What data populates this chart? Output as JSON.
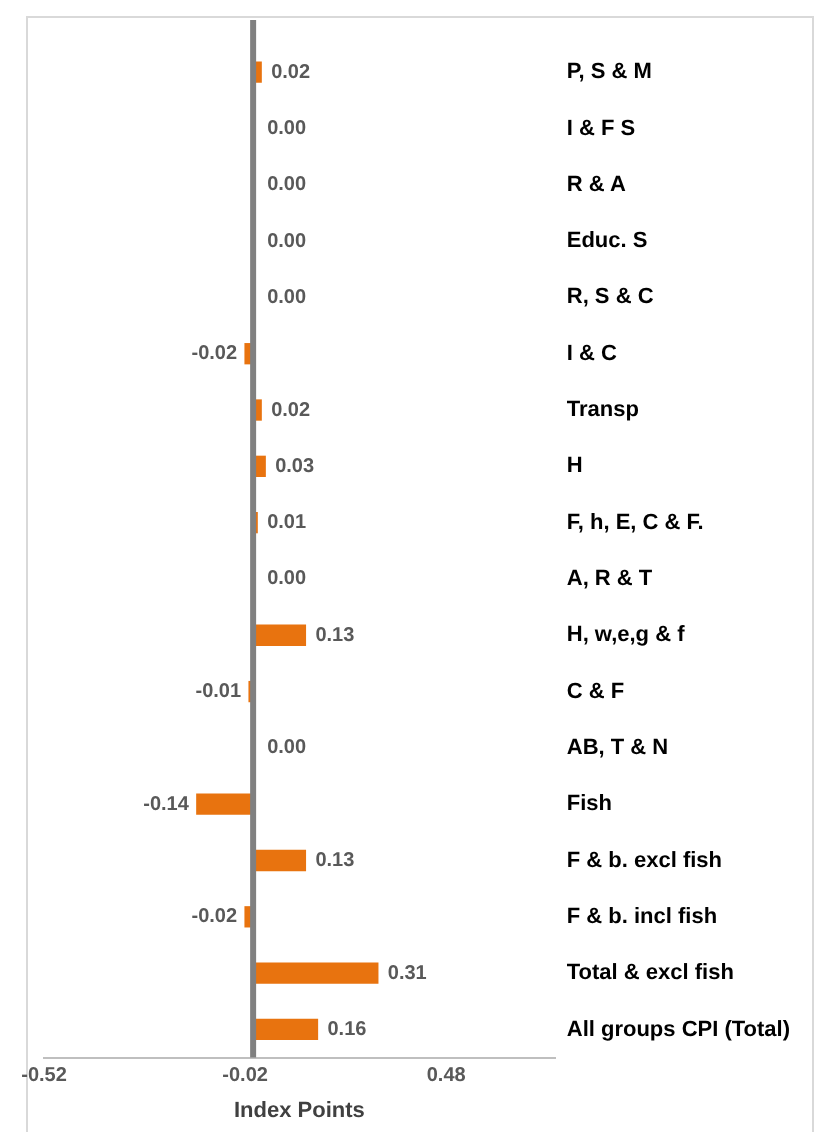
{
  "chart_data": {
    "type": "bar",
    "orientation": "horizontal",
    "xlabel": "Index Points",
    "categories": [
      "P, S & M",
      "I & F S",
      "R & A",
      "Educ. S",
      "R, S & C",
      "I & C",
      "Transp",
      "H",
      "F, h, E, C & F.",
      "A, R & T",
      "H, w,e,g & f",
      "C & F",
      "AB, T & N",
      "Fish",
      "F & b. excl fish",
      "F & b. incl fish",
      "Total & excl fish",
      "All groups CPI (Total)"
    ],
    "values": [
      0.02,
      0,
      0,
      0,
      0,
      -0.02,
      0.02,
      0.03,
      0.01,
      0,
      0.13,
      -0.01,
      0,
      -0.14,
      0.13,
      -0.02,
      0.31,
      0.16
    ],
    "value_labels": [
      "0.02",
      "0.00",
      "0.00",
      "0.00",
      "0.00",
      "-0.02",
      "0.02",
      "0.03",
      "0.01",
      "0.00",
      "0.13",
      "-0.01",
      "0.00",
      "-0.14",
      "0.13",
      "-0.02",
      "0.31",
      "0.16"
    ],
    "color": "#e8730f",
    "xlim": [
      -0.52,
      0.75
    ],
    "xticks": [
      -0.52,
      -0.02,
      0.48
    ],
    "grid": false,
    "legend": false
  }
}
